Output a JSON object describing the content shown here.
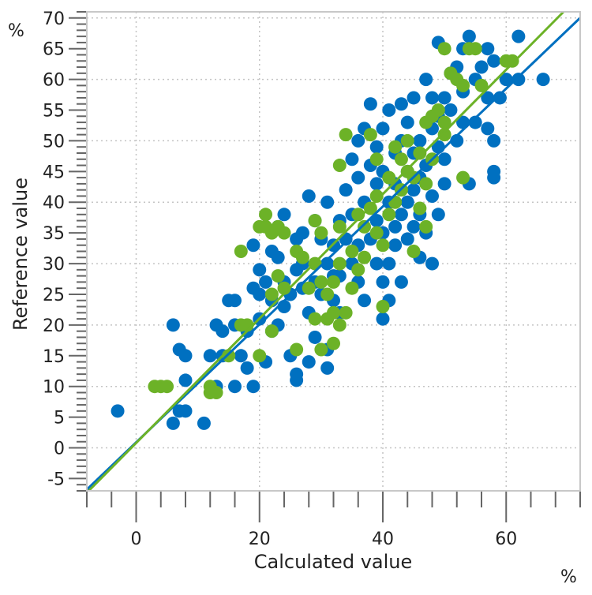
{
  "chart_data": {
    "type": "scatter",
    "title": "",
    "xlabel": "Calculated value",
    "ylabel": "Reference value",
    "x_unit": "%",
    "y_unit": "%",
    "xlim": [
      -8,
      72
    ],
    "ylim": [
      -7,
      71
    ],
    "x_ticks": [
      0,
      20,
      40,
      60
    ],
    "y_ticks": [
      -5,
      0,
      5,
      10,
      15,
      20,
      25,
      30,
      35,
      40,
      45,
      50,
      55,
      60,
      65,
      70
    ],
    "x_tick_labels": [
      "0",
      "20",
      "40",
      "60"
    ],
    "y_tick_labels": [
      "-5",
      "0",
      "5",
      "10",
      "15",
      "20",
      "25",
      "30",
      "35",
      "40",
      "45",
      "50",
      "55",
      "60",
      "65",
      "70"
    ],
    "grid": true,
    "legend": "none",
    "series": [
      {
        "color": "#0070c0",
        "fit_line": {
          "slope": 0.96,
          "intercept": 0.9
        },
        "points": [
          [
            -3,
            6
          ],
          [
            6,
            20
          ],
          [
            6,
            4
          ],
          [
            7,
            16
          ],
          [
            7,
            6
          ],
          [
            8,
            6
          ],
          [
            8,
            11
          ],
          [
            8,
            15
          ],
          [
            11,
            4
          ],
          [
            12,
            15
          ],
          [
            13,
            20
          ],
          [
            13,
            10
          ],
          [
            14,
            15
          ],
          [
            14,
            19
          ],
          [
            15,
            24
          ],
          [
            16,
            24
          ],
          [
            16,
            10
          ],
          [
            16,
            20
          ],
          [
            17,
            15
          ],
          [
            18,
            13
          ],
          [
            18,
            19
          ],
          [
            19,
            26
          ],
          [
            19,
            33
          ],
          [
            19,
            10
          ],
          [
            20,
            25
          ],
          [
            20,
            29
          ],
          [
            20,
            21
          ],
          [
            21,
            14
          ],
          [
            21,
            27
          ],
          [
            22,
            24
          ],
          [
            22,
            32
          ],
          [
            22,
            19
          ],
          [
            23,
            31
          ],
          [
            23,
            20
          ],
          [
            23,
            36
          ],
          [
            24,
            38
          ],
          [
            24,
            23
          ],
          [
            24,
            27
          ],
          [
            25,
            15
          ],
          [
            25,
            25
          ],
          [
            26,
            12
          ],
          [
            26,
            11
          ],
          [
            26,
            29
          ],
          [
            26,
            34
          ],
          [
            27,
            30
          ],
          [
            27,
            35
          ],
          [
            27,
            26
          ],
          [
            28,
            14
          ],
          [
            28,
            22
          ],
          [
            28,
            41
          ],
          [
            29,
            18
          ],
          [
            29,
            27
          ],
          [
            29,
            37
          ],
          [
            30,
            25
          ],
          [
            30,
            34
          ],
          [
            31,
            30
          ],
          [
            31,
            16
          ],
          [
            31,
            13
          ],
          [
            31,
            40
          ],
          [
            32,
            24
          ],
          [
            32,
            33
          ],
          [
            32,
            28
          ],
          [
            33,
            37
          ],
          [
            33,
            28
          ],
          [
            33,
            22
          ],
          [
            34,
            34
          ],
          [
            34,
            42
          ],
          [
            35,
            30
          ],
          [
            35,
            38
          ],
          [
            35,
            47
          ],
          [
            36,
            27
          ],
          [
            36,
            33
          ],
          [
            36,
            44
          ],
          [
            36,
            50
          ],
          [
            37,
            24
          ],
          [
            37,
            40
          ],
          [
            37,
            52
          ],
          [
            38,
            34
          ],
          [
            38,
            46
          ],
          [
            38,
            56
          ],
          [
            39,
            37
          ],
          [
            39,
            30
          ],
          [
            39,
            43
          ],
          [
            39,
            49
          ],
          [
            40,
            21
          ],
          [
            40,
            27
          ],
          [
            40,
            35
          ],
          [
            40,
            45
          ],
          [
            40,
            52
          ],
          [
            41,
            40
          ],
          [
            41,
            24
          ],
          [
            41,
            30
          ],
          [
            41,
            55
          ],
          [
            42,
            36
          ],
          [
            42,
            48
          ],
          [
            42,
            33
          ],
          [
            42,
            43
          ],
          [
            43,
            38
          ],
          [
            43,
            50
          ],
          [
            43,
            56
          ],
          [
            43,
            27
          ],
          [
            44,
            34
          ],
          [
            44,
            45
          ],
          [
            44,
            53
          ],
          [
            44,
            40
          ],
          [
            45,
            36
          ],
          [
            45,
            48
          ],
          [
            45,
            57
          ],
          [
            45,
            42
          ],
          [
            46,
            31
          ],
          [
            46,
            38
          ],
          [
            46,
            50
          ],
          [
            46,
            44
          ],
          [
            47,
            35
          ],
          [
            47,
            60
          ],
          [
            47,
            46
          ],
          [
            48,
            30
          ],
          [
            48,
            41
          ],
          [
            48,
            52
          ],
          [
            48,
            57
          ],
          [
            49,
            38
          ],
          [
            49,
            49
          ],
          [
            49,
            54
          ],
          [
            50,
            43
          ],
          [
            50,
            47
          ],
          [
            50,
            57
          ],
          [
            51,
            61
          ],
          [
            51,
            55
          ],
          [
            52,
            50
          ],
          [
            52,
            62
          ],
          [
            53,
            58
          ],
          [
            53,
            53
          ],
          [
            54,
            67
          ],
          [
            54,
            43
          ],
          [
            55,
            60
          ],
          [
            55,
            53
          ],
          [
            56,
            62
          ],
          [
            57,
            57
          ],
          [
            57,
            52
          ],
          [
            58,
            44
          ],
          [
            58,
            50
          ],
          [
            58,
            63
          ],
          [
            58,
            45
          ],
          [
            59,
            57
          ],
          [
            60,
            60
          ],
          [
            62,
            67
          ],
          [
            62,
            60
          ],
          [
            66,
            60
          ],
          [
            49,
            66
          ],
          [
            53,
            65
          ],
          [
            57,
            65
          ]
        ]
      },
      {
        "color": "#6cb227",
        "fit_line": {
          "slope": 1.013,
          "intercept": 0.8
        },
        "points": [
          [
            3,
            10
          ],
          [
            4,
            10
          ],
          [
            5,
            10
          ],
          [
            12,
            9
          ],
          [
            12,
            10
          ],
          [
            13,
            9
          ],
          [
            15,
            15
          ],
          [
            17,
            32
          ],
          [
            17,
            20
          ],
          [
            18,
            20
          ],
          [
            20,
            15
          ],
          [
            20,
            36
          ],
          [
            21,
            36
          ],
          [
            21,
            38
          ],
          [
            22,
            25
          ],
          [
            22,
            19
          ],
          [
            22,
            35
          ],
          [
            23,
            28
          ],
          [
            23,
            36
          ],
          [
            24,
            35
          ],
          [
            24,
            26
          ],
          [
            26,
            16
          ],
          [
            26,
            32
          ],
          [
            27,
            31
          ],
          [
            28,
            26
          ],
          [
            29,
            37
          ],
          [
            29,
            30
          ],
          [
            29,
            21
          ],
          [
            30,
            27
          ],
          [
            30,
            35
          ],
          [
            30,
            16
          ],
          [
            31,
            21
          ],
          [
            31,
            25
          ],
          [
            32,
            17
          ],
          [
            32,
            22
          ],
          [
            32,
            27
          ],
          [
            33,
            20
          ],
          [
            33,
            30
          ],
          [
            33,
            36
          ],
          [
            33,
            46
          ],
          [
            34,
            51
          ],
          [
            34,
            22
          ],
          [
            35,
            32
          ],
          [
            35,
            26
          ],
          [
            36,
            29
          ],
          [
            36,
            38
          ],
          [
            37,
            36
          ],
          [
            37,
            31
          ],
          [
            38,
            39
          ],
          [
            38,
            51
          ],
          [
            39,
            47
          ],
          [
            39,
            41
          ],
          [
            39,
            35
          ],
          [
            40,
            23
          ],
          [
            40,
            33
          ],
          [
            41,
            44
          ],
          [
            41,
            38
          ],
          [
            42,
            40
          ],
          [
            42,
            49
          ],
          [
            43,
            47
          ],
          [
            43,
            42
          ],
          [
            44,
            50
          ],
          [
            44,
            45
          ],
          [
            45,
            32
          ],
          [
            45,
            44
          ],
          [
            46,
            39
          ],
          [
            46,
            48
          ],
          [
            47,
            53
          ],
          [
            47,
            43
          ],
          [
            48,
            54
          ],
          [
            48,
            47
          ],
          [
            49,
            55
          ],
          [
            50,
            53
          ],
          [
            50,
            51
          ],
          [
            51,
            61
          ],
          [
            52,
            60
          ],
          [
            53,
            59
          ],
          [
            54,
            65
          ],
          [
            55,
            65
          ],
          [
            56,
            59
          ],
          [
            60,
            63
          ],
          [
            61,
            63
          ],
          [
            50,
            65
          ],
          [
            53,
            44
          ],
          [
            47,
            36
          ]
        ]
      }
    ]
  }
}
